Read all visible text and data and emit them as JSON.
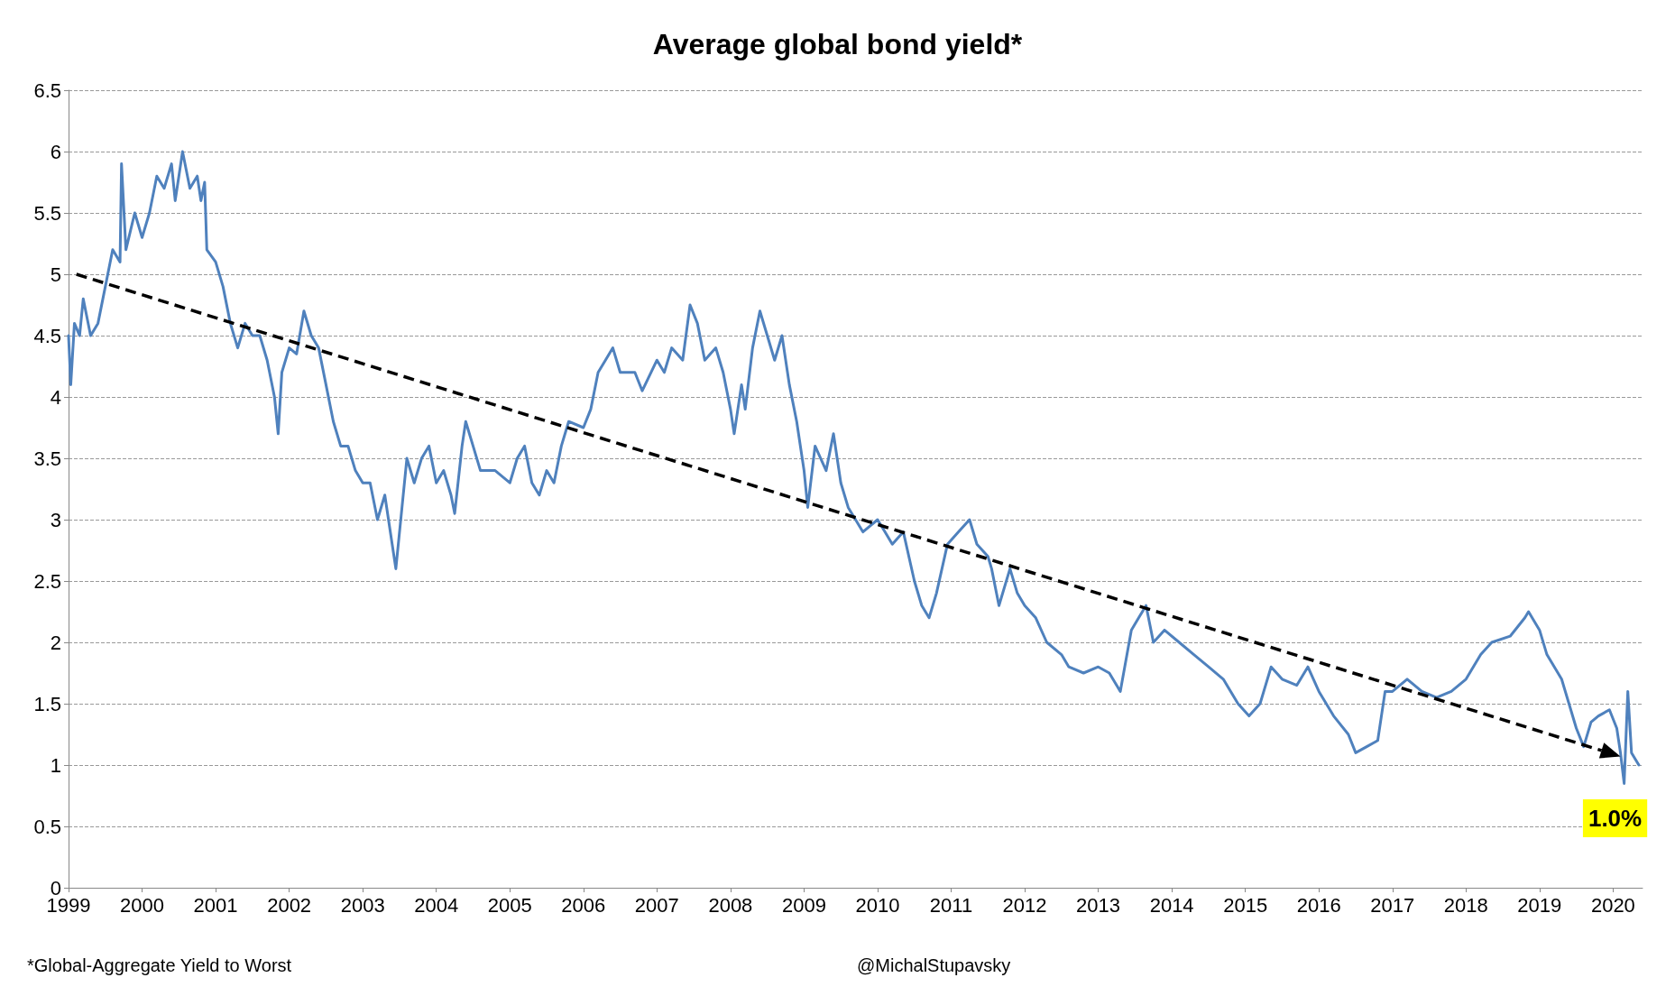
{
  "chart_data": {
    "type": "line",
    "title": "Average global bond yield*",
    "xlim": [
      1999,
      2020.4
    ],
    "xticks": [
      1999,
      2000,
      2001,
      2002,
      2003,
      2004,
      2005,
      2006,
      2007,
      2008,
      2009,
      2010,
      2011,
      2012,
      2013,
      2014,
      2015,
      2016,
      2017,
      2018,
      2019,
      2020
    ],
    "ylim": [
      0,
      6.5
    ],
    "yticks": [
      0,
      0.5,
      1,
      1.5,
      2,
      2.5,
      3,
      3.5,
      4,
      4.5,
      5,
      5.5,
      6,
      6.5
    ],
    "grid": "y",
    "series": [
      {
        "color": "#4f81bd",
        "marker": "none",
        "line_style": "solid",
        "x": [
          1999.0,
          1999.03,
          1999.08,
          1999.15,
          1999.2,
          1999.3,
          1999.4,
          1999.5,
          1999.6,
          1999.7,
          1999.72,
          1999.78,
          1999.9,
          2000.0,
          2000.1,
          2000.2,
          2000.3,
          2000.4,
          2000.45,
          2000.5,
          2000.55,
          2000.65,
          2000.75,
          2000.8,
          2000.85,
          2000.88,
          2001.0,
          2001.1,
          2001.2,
          2001.3,
          2001.4,
          2001.5,
          2001.6,
          2001.7,
          2001.8,
          2001.85,
          2001.9,
          2002.0,
          2002.1,
          2002.2,
          2002.3,
          2002.4,
          2002.5,
          2002.6,
          2002.7,
          2002.8,
          2002.9,
          2003.0,
          2003.1,
          2003.2,
          2003.3,
          2003.4,
          2003.45,
          2003.55,
          2003.6,
          2003.7,
          2003.8,
          2003.9,
          2004.0,
          2004.1,
          2004.2,
          2004.25,
          2004.35,
          2004.4,
          2004.5,
          2004.6,
          2004.8,
          2005.0,
          2005.1,
          2005.2,
          2005.3,
          2005.4,
          2005.5,
          2005.6,
          2005.7,
          2005.8,
          2006.0,
          2006.1,
          2006.2,
          2006.3,
          2006.4,
          2006.5,
          2006.7,
          2006.8,
          2007.0,
          2007.1,
          2007.2,
          2007.35,
          2007.45,
          2007.55,
          2007.65,
          2007.8,
          2007.9,
          2008.0,
          2008.05,
          2008.15,
          2008.2,
          2008.3,
          2008.4,
          2008.5,
          2008.6,
          2008.7,
          2008.8,
          2008.9,
          2009.0,
          2009.05,
          2009.15,
          2009.3,
          2009.4,
          2009.5,
          2009.6,
          2009.8,
          2010.0,
          2010.1,
          2010.2,
          2010.35,
          2010.5,
          2010.6,
          2010.7,
          2010.8,
          2010.95,
          2011.1,
          2011.25,
          2011.35,
          2011.5,
          2011.55,
          2011.65,
          2011.8,
          2011.9,
          2012.0,
          2012.15,
          2012.3,
          2012.5,
          2012.6,
          2012.8,
          2013.0,
          2013.15,
          2013.3,
          2013.45,
          2013.55,
          2013.65,
          2013.75,
          2013.9,
          2014.1,
          2014.3,
          2014.5,
          2014.7,
          2014.9,
          2015.05,
          2015.2,
          2015.35,
          2015.5,
          2015.7,
          2015.85,
          2016.0,
          2016.2,
          2016.4,
          2016.5,
          2016.65,
          2016.8,
          2016.9,
          2017.0,
          2017.2,
          2017.4,
          2017.6,
          2017.8,
          2018.0,
          2018.2,
          2018.35,
          2018.6,
          2018.8,
          2018.85,
          2019.0,
          2019.1,
          2019.3,
          2019.4,
          2019.5,
          2019.6,
          2019.7,
          2019.8,
          2019.95,
          2020.05,
          2020.1,
          2020.15,
          2020.2,
          2020.25,
          2020.35
        ],
        "values": [
          4.5,
          4.1,
          4.6,
          4.5,
          4.8,
          4.5,
          4.6,
          4.9,
          5.2,
          5.1,
          5.9,
          5.2,
          5.5,
          5.3,
          5.5,
          5.8,
          5.7,
          5.9,
          5.6,
          5.8,
          6.0,
          5.7,
          5.8,
          5.6,
          5.75,
          5.2,
          5.1,
          4.9,
          4.6,
          4.4,
          4.6,
          4.5,
          4.5,
          4.3,
          4.0,
          3.7,
          4.2,
          4.4,
          4.35,
          4.7,
          4.5,
          4.4,
          4.1,
          3.8,
          3.6,
          3.6,
          3.4,
          3.3,
          3.3,
          3.0,
          3.2,
          2.8,
          2.6,
          3.2,
          3.5,
          3.3,
          3.5,
          3.6,
          3.3,
          3.4,
          3.2,
          3.05,
          3.6,
          3.8,
          3.6,
          3.4,
          3.4,
          3.3,
          3.5,
          3.6,
          3.3,
          3.2,
          3.4,
          3.3,
          3.6,
          3.8,
          3.75,
          3.9,
          4.2,
          4.3,
          4.4,
          4.2,
          4.2,
          4.05,
          4.3,
          4.2,
          4.4,
          4.3,
          4.75,
          4.6,
          4.3,
          4.4,
          4.2,
          3.9,
          3.7,
          4.1,
          3.9,
          4.4,
          4.7,
          4.5,
          4.3,
          4.5,
          4.1,
          3.8,
          3.4,
          3.1,
          3.6,
          3.4,
          3.7,
          3.3,
          3.1,
          2.9,
          3.0,
          2.9,
          2.8,
          2.9,
          2.5,
          2.3,
          2.2,
          2.4,
          2.8,
          2.9,
          3.0,
          2.8,
          2.7,
          2.6,
          2.3,
          2.6,
          2.4,
          2.3,
          2.2,
          2.0,
          1.9,
          1.8,
          1.75,
          1.8,
          1.75,
          1.6,
          2.1,
          2.2,
          2.3,
          2.0,
          2.1,
          2.0,
          1.9,
          1.8,
          1.7,
          1.5,
          1.4,
          1.5,
          1.8,
          1.7,
          1.65,
          1.8,
          1.6,
          1.4,
          1.25,
          1.1,
          1.15,
          1.2,
          1.6,
          1.6,
          1.7,
          1.6,
          1.55,
          1.6,
          1.7,
          1.9,
          2.0,
          2.05,
          2.2,
          2.25,
          2.1,
          1.9,
          1.7,
          1.5,
          1.3,
          1.15,
          1.35,
          1.4,
          1.45,
          1.3,
          1.1,
          0.85,
          1.6,
          1.1,
          1.0
        ]
      }
    ],
    "annotations": [
      {
        "text": "1.0%",
        "x": 2020.35,
        "y": 1.0
      },
      "*Global-Aggregate Yield to Worst",
      "@MichalStupavsky"
    ]
  }
}
